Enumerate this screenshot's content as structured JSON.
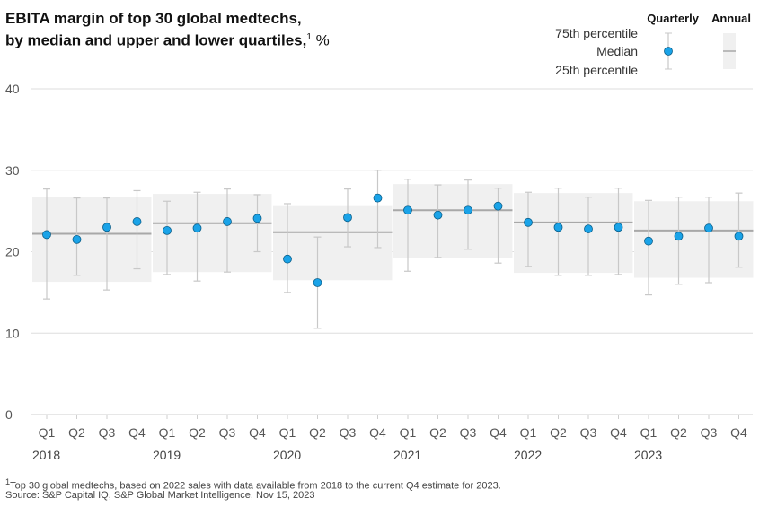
{
  "chart_data": {
    "type": "errorbar",
    "title_line1": "EBITA margin of top 30 global medtechs,",
    "title_line2": "by median and upper and lower quartiles,",
    "title_sup": "1",
    "title_unit": " %",
    "ylim": [
      0,
      40
    ],
    "yticks": [
      "0",
      "10",
      "20",
      "30",
      "40"
    ],
    "ytick_values": [
      0,
      10,
      20,
      30,
      40
    ],
    "legend": {
      "quarterly": "Quarterly",
      "annual": "Annual",
      "p75": "75th percentile",
      "median": "Median",
      "p25": "25th percentile",
      "placement": "top-right"
    },
    "colors": {
      "dot": "#1aa3e8",
      "dot_stroke": "#0b5f8a",
      "whisker": "#c8c8c8",
      "box": "#f0f0f0",
      "annual_median": "#a8a8a8",
      "grid": "#dddddd"
    },
    "years": [
      {
        "year": "2018",
        "annual": {
          "median": 22.2,
          "p75": 26.7,
          "p25": 16.3
        },
        "quarters": [
          {
            "q": "Q1",
            "median": 22.1,
            "p75": 27.7,
            "p25": 14.2
          },
          {
            "q": "Q2",
            "median": 21.5,
            "p75": 26.6,
            "p25": 17.1
          },
          {
            "q": "Q3",
            "median": 23.0,
            "p75": 26.6,
            "p25": 15.3
          },
          {
            "q": "Q4",
            "median": 23.7,
            "p75": 27.5,
            "p25": 17.9
          }
        ]
      },
      {
        "year": "2019",
        "annual": {
          "median": 23.5,
          "p75": 27.1,
          "p25": 17.5
        },
        "quarters": [
          {
            "q": "Q1",
            "median": 22.6,
            "p75": 26.2,
            "p25": 17.2
          },
          {
            "q": "Q2",
            "median": 22.9,
            "p75": 27.3,
            "p25": 16.4
          },
          {
            "q": "Q3",
            "median": 23.7,
            "p75": 27.7,
            "p25": 17.5
          },
          {
            "q": "Q4",
            "median": 24.1,
            "p75": 27.0,
            "p25": 20.0
          }
        ]
      },
      {
        "year": "2020",
        "annual": {
          "median": 22.4,
          "p75": 25.6,
          "p25": 16.5
        },
        "quarters": [
          {
            "q": "Q1",
            "median": 19.1,
            "p75": 25.9,
            "p25": 15.0
          },
          {
            "q": "Q2",
            "median": 16.2,
            "p75": 21.8,
            "p25": 10.6
          },
          {
            "q": "Q3",
            "median": 24.2,
            "p75": 27.7,
            "p25": 20.6
          },
          {
            "q": "Q4",
            "median": 26.6,
            "p75": 30.0,
            "p25": 20.5
          }
        ]
      },
      {
        "year": "2021",
        "annual": {
          "median": 25.1,
          "p75": 28.3,
          "p25": 19.2
        },
        "quarters": [
          {
            "q": "Q1",
            "median": 25.1,
            "p75": 28.9,
            "p25": 17.6
          },
          {
            "q": "Q2",
            "median": 24.5,
            "p75": 28.2,
            "p25": 19.3
          },
          {
            "q": "Q3",
            "median": 25.1,
            "p75": 28.8,
            "p25": 20.3
          },
          {
            "q": "Q4",
            "median": 25.6,
            "p75": 27.8,
            "p25": 18.6
          }
        ]
      },
      {
        "year": "2022",
        "annual": {
          "median": 23.6,
          "p75": 27.2,
          "p25": 17.4
        },
        "quarters": [
          {
            "q": "Q1",
            "median": 23.6,
            "p75": 27.3,
            "p25": 18.2
          },
          {
            "q": "Q2",
            "median": 23.0,
            "p75": 27.8,
            "p25": 17.1
          },
          {
            "q": "Q3",
            "median": 22.8,
            "p75": 26.7,
            "p25": 17.1
          },
          {
            "q": "Q4",
            "median": 23.0,
            "p75": 27.8,
            "p25": 17.2
          }
        ]
      },
      {
        "year": "2023",
        "annual": {
          "median": 22.6,
          "p75": 26.2,
          "p25": 16.8
        },
        "quarters": [
          {
            "q": "Q1",
            "median": 21.3,
            "p75": 26.3,
            "p25": 14.7
          },
          {
            "q": "Q2",
            "median": 21.9,
            "p75": 26.7,
            "p25": 16.0
          },
          {
            "q": "Q3",
            "median": 22.9,
            "p75": 26.7,
            "p25": 16.2
          },
          {
            "q": "Q4",
            "median": 21.9,
            "p75": 27.2,
            "p25": 18.1
          }
        ]
      }
    ]
  },
  "footnote": "Top 30 global medtechs, based on 2022 sales with data available from 2018 to the current Q4 estimate for 2023.",
  "footnote_mark": "1",
  "source": "Source: S&P Capital IQ, S&P Global Market Intelligence, Nov 15, 2023"
}
